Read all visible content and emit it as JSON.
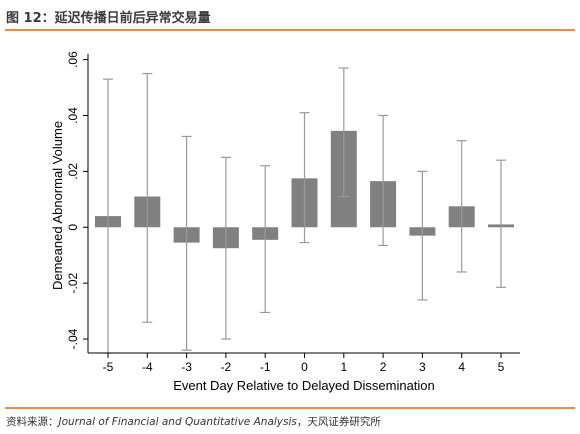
{
  "header": {
    "title": "图 12：延迟传播日前后异常交易量"
  },
  "footer": {
    "prefix": "资料来源：",
    "journal": "Journal of Financial and Quantitative Analysis",
    "suffix": "，天风证券研究所"
  },
  "colors": {
    "accent": "#ee8a4a",
    "bar_fill": "#808080",
    "error_bar": "#9a9a9a",
    "axis": "#000000"
  },
  "chart_data": {
    "type": "bar",
    "title": "",
    "xlabel": "Event Day Relative to Delayed Dissemination",
    "ylabel": "Demeaned Abnormal Volume",
    "categories": [
      "-5",
      "-4",
      "-3",
      "-2",
      "-1",
      "0",
      "1",
      "2",
      "3",
      "4",
      "5"
    ],
    "values": [
      0.004,
      0.011,
      -0.0055,
      -0.0075,
      -0.0045,
      0.0175,
      0.0345,
      0.0165,
      -0.003,
      0.0075,
      0.001
    ],
    "ci_high": [
      0.053,
      0.055,
      0.0325,
      0.025,
      0.022,
      0.041,
      0.057,
      0.04,
      0.02,
      0.031,
      0.024
    ],
    "ci_low": [
      -0.045,
      -0.034,
      -0.044,
      -0.04,
      -0.0305,
      -0.0055,
      0.011,
      -0.0065,
      -0.026,
      -0.016,
      -0.0215
    ],
    "ylim": [
      -0.045,
      0.062
    ],
    "yticks": [
      -0.04,
      -0.02,
      0,
      0.02,
      0.04,
      0.06
    ],
    "ytick_labels": [
      "-.04",
      "-.02",
      "0",
      ".02",
      ".04",
      ".06"
    ],
    "grid": false,
    "legend": false
  }
}
